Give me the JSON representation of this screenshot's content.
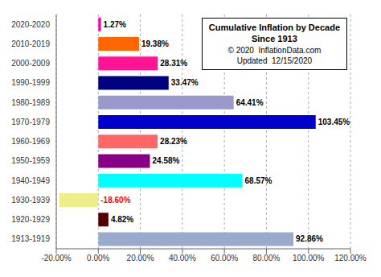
{
  "chart_data": {
    "type": "bar",
    "orientation": "horizontal",
    "title": "Cumulative Inflation by Decade",
    "subtitle": "Since 1913",
    "annotations": [
      "© 2020  InflationData.com",
      "Updated  12/15/2020"
    ],
    "categories": [
      "1913-1919",
      "1920-1929",
      "1930-1939",
      "1940-1949",
      "1950-1959",
      "1960-1969",
      "1970-1979",
      "1980-1989",
      "1990-1999",
      "2000-2009",
      "2010-2019",
      "2020-2020"
    ],
    "values": [
      92.86,
      4.82,
      -18.6,
      68.57,
      24.58,
      28.23,
      103.45,
      64.41,
      33.47,
      28.31,
      19.38,
      1.27
    ],
    "value_labels": [
      "92.86%",
      "4.82%",
      "-18.60%",
      "68.57%",
      "24.58%",
      "28.23%",
      "103.45%",
      "64.41%",
      "33.47%",
      "28.31%",
      "19.38%",
      "1.27%"
    ],
    "colors": [
      "#99AACC",
      "#550000",
      "#EEEE88",
      "#00FFFF",
      "#880088",
      "#FF6666",
      "#0000CC",
      "#9999CC",
      "#000080",
      "#FF1493",
      "#FF6600",
      "#FF00AA"
    ],
    "xlim": [
      -20,
      120
    ],
    "xticks": [
      {
        "value": -20,
        "label": "-20.00%"
      },
      {
        "value": 0,
        "label": "0.00%"
      },
      {
        "value": 20,
        "label": "20.00%"
      },
      {
        "value": 40,
        "label": "40.00%"
      },
      {
        "value": 60,
        "label": "60.00%"
      },
      {
        "value": 80,
        "label": "80.00%"
      },
      {
        "value": 100,
        "label": "100.00%"
      },
      {
        "value": 120,
        "label": "120.00%"
      }
    ],
    "grid": true,
    "data_labels": true
  }
}
